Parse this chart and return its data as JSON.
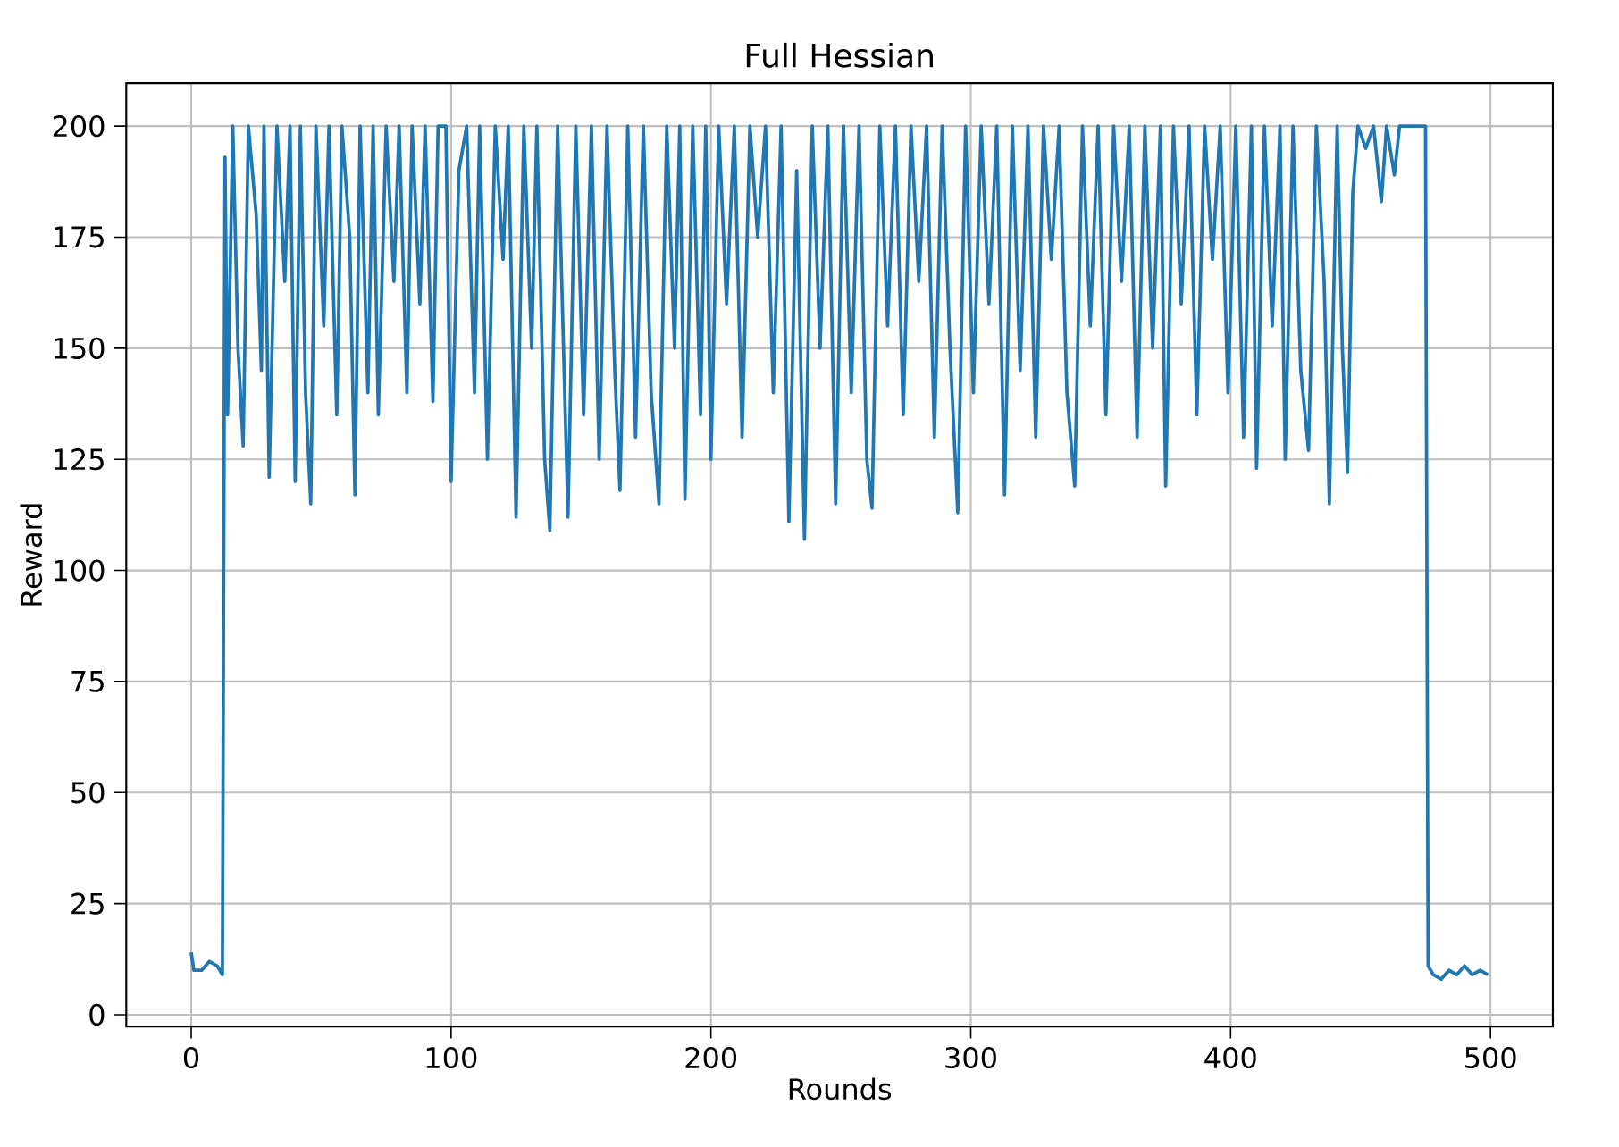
{
  "chart_data": {
    "type": "line",
    "title": "Full Hessian",
    "xlabel": "Rounds",
    "ylabel": "Reward",
    "xlim": [
      -25,
      524
    ],
    "ylim": [
      -2.65,
      209.65
    ],
    "xticks": [
      0,
      100,
      200,
      300,
      400,
      500
    ],
    "yticks": [
      0,
      25,
      50,
      75,
      100,
      125,
      150,
      175,
      200
    ],
    "grid": true,
    "series": [
      {
        "color": "#1f77b4",
        "x": [
          0,
          1,
          4,
          7,
          10,
          12,
          13,
          14,
          16,
          18,
          20,
          22,
          25,
          27,
          28,
          30,
          33,
          36,
          38,
          40,
          42,
          44,
          46,
          48,
          51,
          53,
          56,
          58,
          61,
          63,
          65,
          68,
          70,
          72,
          75,
          78,
          80,
          83,
          85,
          88,
          90,
          93,
          95,
          98,
          100,
          103,
          106,
          109,
          111,
          114,
          117,
          120,
          122,
          125,
          128,
          131,
          133,
          136,
          138,
          141,
          145,
          148,
          151,
          154,
          157,
          160,
          163,
          165,
          168,
          171,
          174,
          177,
          180,
          183,
          186,
          188,
          190,
          193,
          196,
          198,
          200,
          203,
          206,
          209,
          212,
          215,
          218,
          221,
          224,
          227,
          230,
          233,
          236,
          239,
          242,
          245,
          248,
          251,
          254,
          257,
          260,
          262,
          265,
          268,
          271,
          274,
          277,
          280,
          283,
          286,
          289,
          292,
          295,
          298,
          301,
          304,
          307,
          310,
          313,
          316,
          319,
          322,
          325,
          328,
          331,
          334,
          337,
          340,
          343,
          346,
          349,
          352,
          355,
          358,
          361,
          364,
          367,
          370,
          373,
          375,
          378,
          381,
          384,
          387,
          390,
          393,
          396,
          399,
          402,
          405,
          408,
          410,
          413,
          416,
          419,
          421,
          424,
          427,
          430,
          433,
          436,
          438,
          441,
          443,
          445,
          447,
          449,
          452,
          455,
          458,
          460,
          463,
          465,
          475,
          476,
          478,
          481,
          484,
          487,
          490,
          493,
          496,
          499
        ],
        "values": [
          14,
          10,
          10,
          12,
          11,
          9,
          193,
          135,
          200,
          150,
          128,
          200,
          180,
          145,
          200,
          121,
          200,
          165,
          200,
          120,
          200,
          140,
          115,
          200,
          155,
          200,
          135,
          200,
          175,
          117,
          200,
          140,
          200,
          135,
          200,
          165,
          200,
          140,
          200,
          160,
          200,
          138,
          200,
          200,
          120,
          190,
          200,
          140,
          200,
          125,
          200,
          170,
          200,
          112,
          200,
          150,
          200,
          125,
          109,
          200,
          112,
          200,
          135,
          200,
          125,
          200,
          145,
          118,
          200,
          130,
          200,
          140,
          115,
          200,
          150,
          200,
          116,
          200,
          135,
          200,
          125,
          200,
          160,
          200,
          130,
          200,
          175,
          200,
          140,
          200,
          111,
          190,
          107,
          200,
          150,
          200,
          115,
          200,
          140,
          200,
          125,
          114,
          200,
          155,
          200,
          135,
          200,
          165,
          200,
          130,
          200,
          150,
          113,
          200,
          140,
          200,
          160,
          200,
          117,
          200,
          145,
          200,
          130,
          200,
          170,
          200,
          140,
          119,
          200,
          155,
          200,
          135,
          200,
          165,
          200,
          130,
          200,
          150,
          200,
          119,
          200,
          160,
          200,
          135,
          200,
          170,
          200,
          140,
          200,
          130,
          200,
          123,
          200,
          155,
          200,
          125,
          200,
          145,
          127,
          200,
          165,
          115,
          200,
          150,
          122,
          185,
          200,
          195,
          200,
          183,
          200,
          189,
          200,
          200,
          11,
          9,
          8,
          10,
          9,
          11,
          9,
          10,
          9
        ]
      }
    ]
  }
}
